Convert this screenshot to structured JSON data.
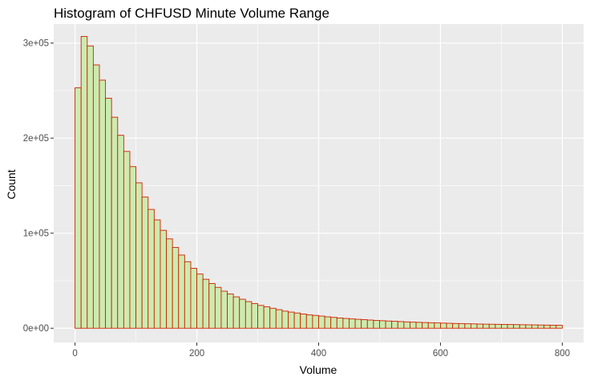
{
  "chart_data": {
    "type": "bar",
    "title": "Histogram of CHFUSD Minute Volume Range",
    "xlabel": "Volume",
    "ylabel": "Count",
    "xlim": [
      -35,
      835
    ],
    "ylim": [
      -15000,
      320000
    ],
    "x_ticks": [
      {
        "value": 0,
        "label": "0"
      },
      {
        "value": 200,
        "label": "200"
      },
      {
        "value": 400,
        "label": "400"
      },
      {
        "value": 600,
        "label": "600"
      },
      {
        "value": 800,
        "label": "800"
      }
    ],
    "y_ticks": [
      {
        "value": 0,
        "label": "0e+00"
      },
      {
        "value": 100000,
        "label": "1e+05"
      },
      {
        "value": 200000,
        "label": "2e+05"
      },
      {
        "value": 300000,
        "label": "3e+05"
      }
    ],
    "grid": true,
    "bin_width": 10,
    "bins_start": [
      0,
      10,
      20,
      30,
      40,
      50,
      60,
      70,
      80,
      90,
      100,
      110,
      120,
      130,
      140,
      150,
      160,
      170,
      180,
      190,
      200,
      210,
      220,
      230,
      240,
      250,
      260,
      270,
      280,
      290,
      300,
      310,
      320,
      330,
      340,
      350,
      360,
      370,
      380,
      390,
      400,
      410,
      420,
      430,
      440,
      450,
      460,
      470,
      480,
      490,
      500,
      510,
      520,
      530,
      540,
      550,
      560,
      570,
      580,
      590,
      600,
      610,
      620,
      630,
      640,
      650,
      660,
      670,
      680,
      690,
      700,
      710,
      720,
      730,
      740,
      750,
      760,
      770,
      780,
      790
    ],
    "counts": [
      253000,
      307000,
      297000,
      277000,
      261000,
      242000,
      222000,
      203000,
      186000,
      170000,
      153000,
      138000,
      125000,
      114000,
      103000,
      94000,
      85000,
      77000,
      70000,
      63000,
      57000,
      51500,
      47000,
      43000,
      39000,
      36000,
      33000,
      30500,
      28000,
      26000,
      24000,
      22500,
      21000,
      19500,
      18000,
      17000,
      16000,
      15000,
      14000,
      13500,
      12800,
      12000,
      11400,
      10800,
      10300,
      9800,
      9400,
      9000,
      8600,
      8200,
      7900,
      7600,
      7300,
      7000,
      6700,
      6400,
      6200,
      6000,
      5800,
      5600,
      5400,
      5200,
      5000,
      4900,
      4700,
      4600,
      4400,
      4300,
      4200,
      4100,
      4000,
      3900,
      3800,
      3700,
      3600,
      3500,
      3400,
      3300,
      3200,
      3100
    ],
    "style": {
      "panel_background": "#ebebeb",
      "grid_color": "#ffffff",
      "bar_fill": "#ccebb0",
      "bar_outline": "#cc2200"
    }
  }
}
